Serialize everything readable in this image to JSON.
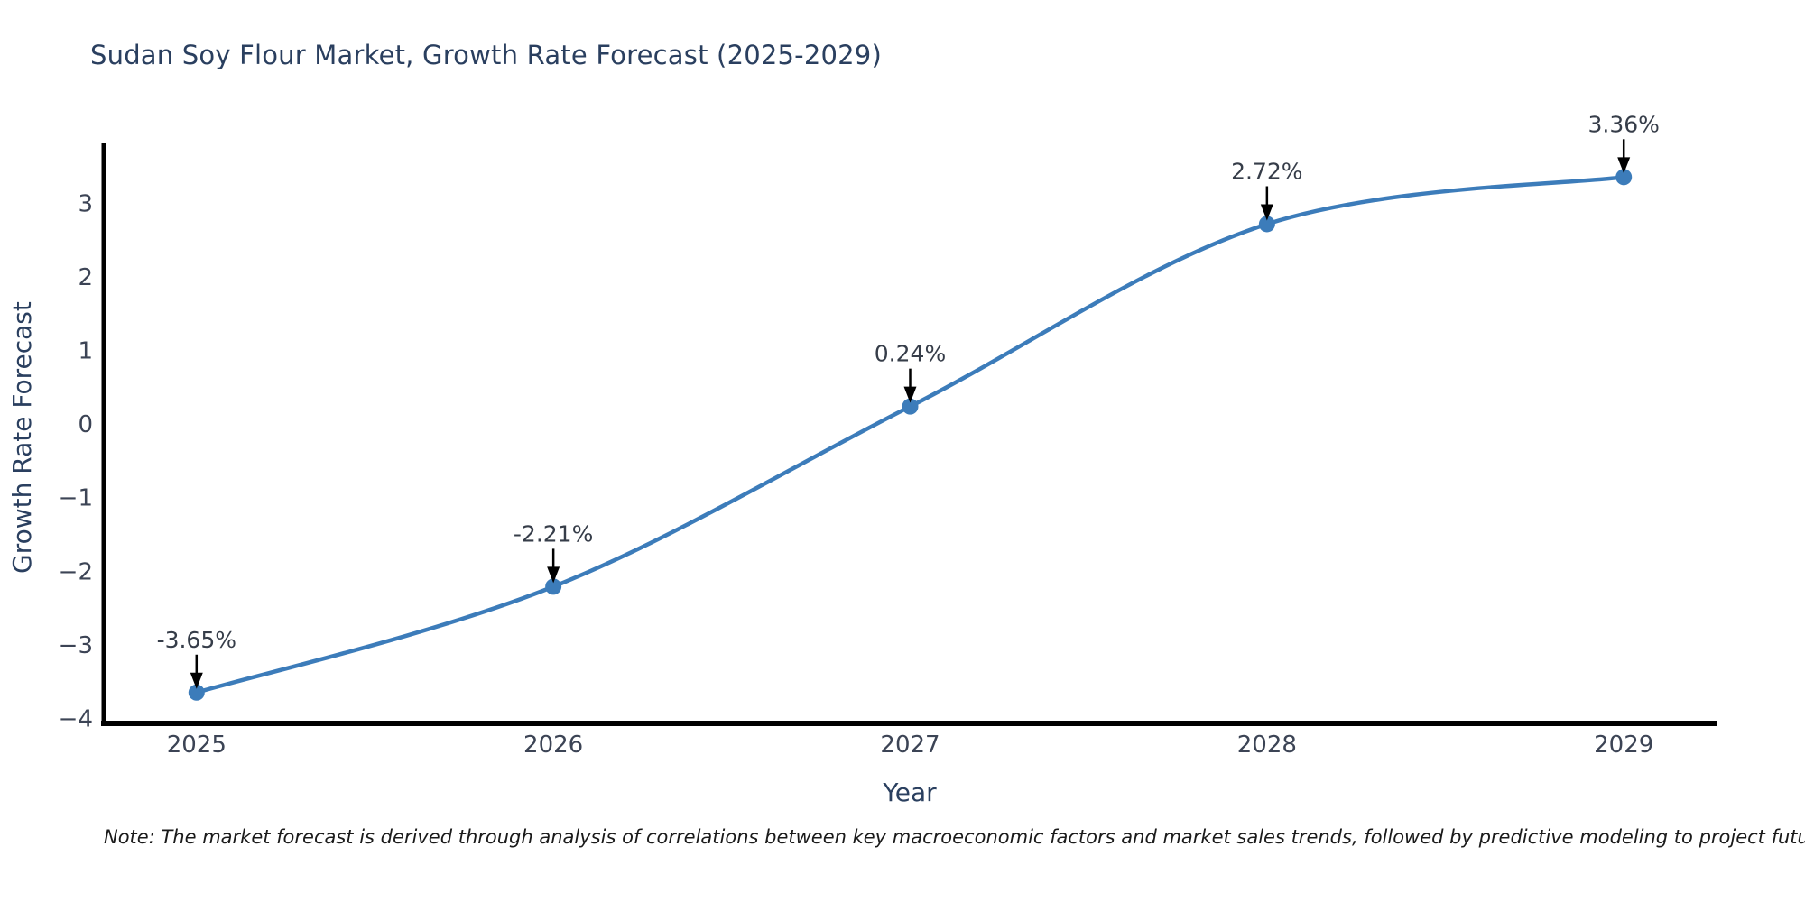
{
  "chart": {
    "title": "Sudan Soy Flour Market, Growth Rate Forecast (2025-2029)",
    "xlabel": "Year",
    "ylabel": "Growth Rate Forecast"
  },
  "note": "Note: The market forecast is derived through analysis of correlations between key macroeconomic factors and market sales trends, followed by predictive modeling to project future sales",
  "chart_data": {
    "type": "line",
    "title": "Sudan Soy Flour Market, Growth Rate Forecast (2025-2029)",
    "xlabel": "Year",
    "ylabel": "Growth Rate Forecast",
    "x": [
      2025,
      2026,
      2027,
      2028,
      2029
    ],
    "y": [
      -3.65,
      -2.21,
      0.24,
      2.72,
      3.36
    ],
    "point_labels": [
      "-3.65%",
      "-2.21%",
      "0.24%",
      "2.72%",
      "3.36%"
    ],
    "xticks": [
      "2025",
      "2026",
      "2027",
      "2028",
      "2029"
    ],
    "yticks": [
      -4,
      -3,
      -2,
      -1,
      0,
      1,
      2,
      3
    ],
    "xlim": [
      2024.74,
      2029.26
    ],
    "ylim": [
      -4.07,
      3.83
    ],
    "line_shape": "spline",
    "grid": false,
    "legend": false,
    "annotation_arrows": "black-down-arrows",
    "colors": {
      "line": "#3c7cba",
      "marker": "#3c7cba",
      "title": "#2a3f5f",
      "tick": "#3c4455",
      "annotation": "#363d49",
      "axis": "#000000",
      "note": "#1a1a1a"
    }
  }
}
